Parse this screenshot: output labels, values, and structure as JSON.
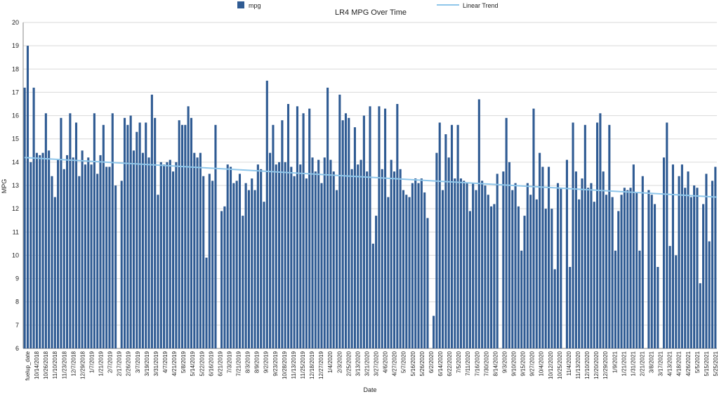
{
  "chart_data": {
    "type": "bar",
    "title": "LR4 MPG Over Time",
    "xlabel": "Date",
    "ylabel": "MPG",
    "ylim": [
      6,
      20
    ],
    "yticks": [
      "6",
      "7",
      "8",
      "9",
      "10",
      "11",
      "12",
      "13",
      "14",
      "15",
      "16",
      "17",
      "18",
      "19",
      "20"
    ],
    "grid": true,
    "legend_position": "top",
    "colors": {
      "bar": "#2f5b93",
      "trend": "#8fc6ea",
      "grid": "#d9d9d9"
    },
    "series": [
      {
        "name": "mpg",
        "values": [
          17.2,
          19.0,
          14.0,
          17.2,
          14.4,
          14.3,
          14.4,
          16.1,
          14.5,
          13.4,
          12.5,
          14.1,
          15.9,
          13.7,
          14.3,
          16.1,
          14.2,
          15.7,
          13.4,
          14.5,
          13.9,
          14.2,
          13.9,
          16.1,
          13.5,
          14.3,
          15.6,
          13.8,
          13.8,
          16.1,
          13.0,
          null,
          13.2,
          15.9,
          15.6,
          16.0,
          14.5,
          15.3,
          15.7,
          14.4,
          15.7,
          14.2,
          16.9,
          15.9,
          12.6,
          14.0,
          13.9,
          14.0,
          14.1,
          13.6,
          14.0,
          15.8,
          15.6,
          15.6,
          16.4,
          15.9,
          14.4,
          14.2,
          14.4,
          13.4,
          9.9,
          13.5,
          13.2,
          15.6,
          null,
          11.9,
          12.1,
          13.9,
          13.8,
          13.1,
          13.2,
          13.5,
          11.7,
          13.1,
          12.8,
          13.3,
          12.8,
          13.9,
          13.7,
          12.3,
          17.5,
          14.4,
          15.6,
          13.9,
          14.0,
          15.8,
          14.0,
          16.5,
          13.8,
          13.4,
          16.4,
          13.9,
          16.1,
          13.3,
          16.3,
          14.2,
          13.6,
          14.1,
          13.1,
          14.2,
          17.2,
          14.1,
          13.6,
          12.8,
          16.9,
          15.8,
          16.1,
          15.9,
          13.7,
          15.5,
          13.9,
          14.1,
          16.0,
          13.6,
          16.4,
          10.5,
          11.7,
          16.4,
          13.7,
          16.3,
          12.5,
          14.1,
          13.6,
          16.5,
          13.7,
          12.8,
          12.6,
          12.5,
          13.1,
          13.3,
          13.1,
          13.3,
          12.7,
          11.6,
          null,
          7.4,
          14.4,
          15.7,
          12.8,
          15.2,
          14.2,
          15.6,
          13.3,
          15.6,
          13.3,
          13.2,
          13.1,
          11.9,
          13.1,
          12.8,
          16.7,
          13.2,
          13.0,
          12.6,
          12.1,
          12.2,
          13.5,
          null,
          13.6,
          15.9,
          14.0,
          12.8,
          13.1,
          12.1,
          10.2,
          11.7,
          13.1,
          12.6,
          16.3,
          12.4,
          14.4,
          13.8,
          12.0,
          13.8,
          12.0,
          9.4,
          13.1,
          12.9,
          null,
          14.1,
          9.5,
          15.7,
          13.6,
          12.4,
          13.3,
          15.6,
          12.9,
          13.1,
          12.3,
          15.7,
          16.1,
          13.6,
          12.6,
          15.6,
          12.5,
          10.2,
          11.9,
          12.6,
          12.9,
          12.8,
          12.9,
          13.9,
          12.7,
          10.2,
          13.4,
          null,
          12.8,
          12.6,
          12.2,
          9.5,
          null,
          14.2,
          15.7,
          10.4,
          13.9,
          10.0,
          13.4,
          13.9,
          12.9,
          13.6,
          12.5,
          13.0,
          12.9,
          8.8,
          12.2,
          13.5,
          10.6,
          13.2,
          13.8
        ]
      },
      {
        "name": "Linear Trend",
        "kind": "line",
        "start": 14.2,
        "end": 12.5
      }
    ],
    "x_tick_labels": [
      "fuelup_date",
      "10/14/2018",
      "10/26/2018",
      "11/10/2018",
      "11/23/2018",
      "12/7/2018",
      "12/29/2018",
      "1/7/2019",
      "1/21/2019",
      "2/7/2019",
      "2/17/2019",
      "2/26/2019",
      "3/7/2019",
      "3/19/2019",
      "3/31/2019",
      "4/7/2019",
      "4/21/2019",
      "5/8/2019",
      "5/14/2019",
      "5/22/2019",
      "6/16/2019",
      "6/21/2019",
      "7/3/2019",
      "7/21/2019",
      "8/3/2019",
      "8/9/2019",
      "9/2/2019",
      "9/23/2019",
      "10/28/2019",
      "11/13/2019",
      "11/25/2019",
      "12/18/2019",
      "12/27/2019",
      "1/4/2020",
      "2/3/2020",
      "2/25/2020",
      "3/13/2020",
      "3/21/2020",
      "3/27/2020",
      "4/6/2020",
      "4/27/2020",
      "5/7/2020",
      "5/16/2020",
      "5/26/2020",
      "6/2/2020",
      "6/14/2020",
      "6/22/2020",
      "7/5/2020",
      "7/11/2020",
      "7/16/2020",
      "7/30/2020",
      "8/14/2020",
      "9/3/2020",
      "9/10/2020",
      "9/15/2020",
      "9/27/2020",
      "10/4/2020",
      "10/12/2020",
      "10/25/2020",
      "11/4/2020",
      "11/13/2020",
      "12/10/2020",
      "12/20/2020",
      "12/29/2020",
      "1/9/2021",
      "1/21/2021",
      "1/31/2021",
      "2/21/2021",
      "3/8/2021",
      "3/17/2021",
      "4/13/2021",
      "4/18/2021",
      "4/26/2021",
      "5/5/2021",
      "5/15/2021",
      "5/25/2021"
    ]
  }
}
